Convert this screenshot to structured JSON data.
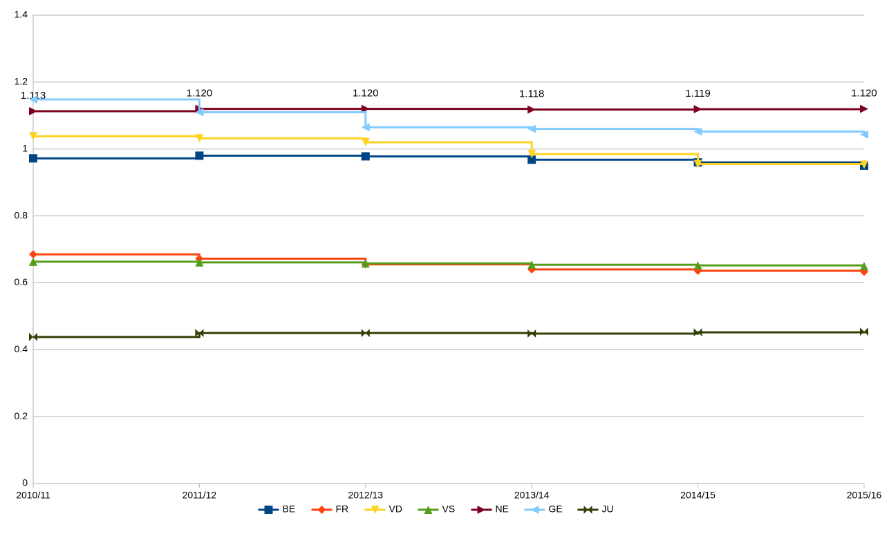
{
  "chart_data": {
    "type": "step-line",
    "categories": [
      "2010/11",
      "2011/12",
      "2012/13",
      "2013/14",
      "2014/15",
      "2015/16"
    ],
    "series": [
      {
        "name": "BE",
        "color": "#004586",
        "marker": "square",
        "values": [
          0.972,
          0.98,
          0.978,
          0.968,
          0.96,
          0.95
        ]
      },
      {
        "name": "FR",
        "color": "#ff420e",
        "marker": "diamond",
        "values": [
          0.685,
          0.672,
          0.655,
          0.64,
          0.636,
          0.633
        ]
      },
      {
        "name": "VD",
        "color": "#ffd320",
        "marker": "triangle-down",
        "values": [
          1.038,
          1.032,
          1.02,
          0.985,
          0.955,
          0.953
        ]
      },
      {
        "name": "VS",
        "color": "#579d1c",
        "marker": "triangle-up",
        "values": [
          0.663,
          0.661,
          0.658,
          0.654,
          0.652,
          0.65
        ]
      },
      {
        "name": "NE",
        "color": "#7e0021",
        "marker": "triangle-right",
        "values": [
          1.113,
          1.12,
          1.12,
          1.118,
          1.119,
          1.12
        ],
        "value_labels": [
          "1.113",
          "1.120",
          "1.120",
          "1.118",
          "1.119",
          "1.120"
        ]
      },
      {
        "name": "GE",
        "color": "#83caff",
        "marker": "triangle-left",
        "values": [
          1.148,
          1.11,
          1.065,
          1.06,
          1.052,
          1.043
        ]
      },
      {
        "name": "JU",
        "color": "#314004",
        "marker": "bowtie",
        "values": [
          0.438,
          0.45,
          0.45,
          0.448,
          0.452,
          0.454
        ]
      }
    ],
    "ylim": [
      0,
      1.4
    ],
    "yticks": [
      0,
      0.2,
      0.4,
      0.6,
      0.8,
      1,
      1.2,
      1.4
    ],
    "grid": true,
    "legend": "bottom"
  }
}
